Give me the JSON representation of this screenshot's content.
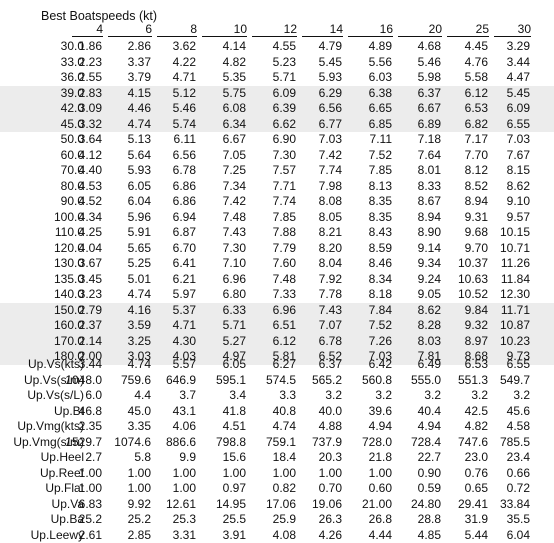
{
  "title": "Best Boatspeeds (kt)",
  "wind_speeds": [
    "4",
    "6",
    "8",
    "10",
    "12",
    "14",
    "16",
    "20",
    "25",
    "30"
  ],
  "angle_rows": [
    {
      "label": "30.0",
      "values": [
        "1.86",
        "2.86",
        "3.62",
        "4.14",
        "4.55",
        "4.79",
        "4.89",
        "4.68",
        "4.45",
        "3.29"
      ]
    },
    {
      "label": "33.0",
      "values": [
        "2.23",
        "3.37",
        "4.22",
        "4.82",
        "5.23",
        "5.45",
        "5.56",
        "5.46",
        "4.76",
        "3.44"
      ]
    },
    {
      "label": "36.0",
      "values": [
        "2.55",
        "3.79",
        "4.71",
        "5.35",
        "5.71",
        "5.93",
        "6.03",
        "5.98",
        "5.58",
        "4.47"
      ]
    },
    {
      "label": "39.0",
      "values": [
        "2.83",
        "4.15",
        "5.12",
        "5.75",
        "6.09",
        "6.29",
        "6.38",
        "6.37",
        "6.12",
        "5.45"
      ]
    },
    {
      "label": "42.0",
      "values": [
        "3.09",
        "4.46",
        "5.46",
        "6.08",
        "6.39",
        "6.56",
        "6.65",
        "6.67",
        "6.53",
        "6.09"
      ]
    },
    {
      "label": "45.0",
      "values": [
        "3.32",
        "4.74",
        "5.74",
        "6.34",
        "6.62",
        "6.77",
        "6.85",
        "6.89",
        "6.82",
        "6.55"
      ]
    },
    {
      "label": "50.0",
      "values": [
        "3.64",
        "5.13",
        "6.11",
        "6.67",
        "6.90",
        "7.03",
        "7.11",
        "7.18",
        "7.17",
        "7.03"
      ]
    },
    {
      "label": "60.0",
      "values": [
        "4.12",
        "5.64",
        "6.56",
        "7.05",
        "7.30",
        "7.42",
        "7.52",
        "7.64",
        "7.70",
        "7.67"
      ]
    },
    {
      "label": "70.0",
      "values": [
        "4.40",
        "5.93",
        "6.78",
        "7.25",
        "7.57",
        "7.74",
        "7.85",
        "8.01",
        "8.12",
        "8.15"
      ]
    },
    {
      "label": "80.0",
      "values": [
        "4.53",
        "6.05",
        "6.86",
        "7.34",
        "7.71",
        "7.98",
        "8.13",
        "8.33",
        "8.52",
        "8.62"
      ]
    },
    {
      "label": "90.0",
      "values": [
        "4.52",
        "6.04",
        "6.86",
        "7.42",
        "7.74",
        "8.08",
        "8.35",
        "8.67",
        "8.94",
        "9.10"
      ]
    },
    {
      "label": "100.0",
      "values": [
        "4.34",
        "5.96",
        "6.94",
        "7.48",
        "7.85",
        "8.05",
        "8.35",
        "8.94",
        "9.31",
        "9.57"
      ]
    },
    {
      "label": "110.0",
      "values": [
        "4.25",
        "5.91",
        "6.87",
        "7.43",
        "7.88",
        "8.21",
        "8.43",
        "8.90",
        "9.68",
        "10.15"
      ]
    },
    {
      "label": "120.0",
      "values": [
        "4.04",
        "5.65",
        "6.70",
        "7.30",
        "7.79",
        "8.20",
        "8.59",
        "9.14",
        "9.70",
        "10.71"
      ]
    },
    {
      "label": "130.0",
      "values": [
        "3.67",
        "5.25",
        "6.41",
        "7.10",
        "7.60",
        "8.04",
        "8.46",
        "9.34",
        "10.37",
        "11.26"
      ]
    },
    {
      "label": "135.0",
      "values": [
        "3.45",
        "5.01",
        "6.21",
        "6.96",
        "7.48",
        "7.92",
        "8.34",
        "9.24",
        "10.63",
        "11.84"
      ]
    },
    {
      "label": "140.0",
      "values": [
        "3.23",
        "4.74",
        "5.97",
        "6.80",
        "7.33",
        "7.78",
        "8.18",
        "9.05",
        "10.52",
        "12.30"
      ]
    },
    {
      "label": "150.0",
      "values": [
        "2.79",
        "4.16",
        "5.37",
        "6.33",
        "6.96",
        "7.43",
        "7.84",
        "8.62",
        "9.84",
        "11.71"
      ]
    },
    {
      "label": "160.0",
      "values": [
        "2.37",
        "3.59",
        "4.71",
        "5.71",
        "6.51",
        "7.07",
        "7.52",
        "8.28",
        "9.32",
        "10.87"
      ]
    },
    {
      "label": "170.0",
      "values": [
        "2.14",
        "3.25",
        "4.30",
        "5.27",
        "6.12",
        "6.78",
        "7.26",
        "8.03",
        "8.97",
        "10.23"
      ]
    },
    {
      "label": "180.0",
      "values": [
        "2.00",
        "3.03",
        "4.03",
        "4.97",
        "5.81",
        "6.52",
        "7.03",
        "7.81",
        "8.68",
        "9.73"
      ]
    }
  ],
  "shaded_rows": [
    3,
    4,
    5,
    17,
    18,
    19,
    20
  ],
  "summary_rows": [
    {
      "label": "Up.Vs(kts)",
      "values": [
        "3.44",
        "4.74",
        "5.57",
        "6.05",
        "6.27",
        "6.37",
        "6.42",
        "6.49",
        "6.53",
        "6.55"
      ]
    },
    {
      "label": "Up.Vs(s/m)",
      "values": [
        "1048.0",
        "759.6",
        "646.9",
        "595.1",
        "574.5",
        "565.2",
        "560.8",
        "555.0",
        "551.3",
        "549.7"
      ]
    },
    {
      "label": "Up.Vs(s/L)",
      "values": [
        "6.0",
        "4.4",
        "3.7",
        "3.4",
        "3.3",
        "3.2",
        "3.2",
        "3.2",
        "3.2",
        "3.2"
      ]
    },
    {
      "label": "Up.Bt",
      "values": [
        "46.8",
        "45.0",
        "43.1",
        "41.8",
        "40.8",
        "40.0",
        "39.6",
        "40.4",
        "42.5",
        "45.6"
      ]
    },
    {
      "label": "Up.Vmg(kts)",
      "values": [
        "2.35",
        "3.35",
        "4.06",
        "4.51",
        "4.74",
        "4.88",
        "4.94",
        "4.94",
        "4.82",
        "4.58"
      ]
    },
    {
      "label": "Up.Vmg(s/m)",
      "values": [
        "1529.7",
        "1074.6",
        "886.6",
        "798.8",
        "759.1",
        "737.9",
        "728.0",
        "728.4",
        "747.6",
        "785.5"
      ]
    },
    {
      "label": "Up.Heel",
      "values": [
        "2.7",
        "5.8",
        "9.9",
        "15.6",
        "18.4",
        "20.3",
        "21.8",
        "22.7",
        "23.0",
        "23.4"
      ]
    },
    {
      "label": "Up.Reef",
      "values": [
        "1.00",
        "1.00",
        "1.00",
        "1.00",
        "1.00",
        "1.00",
        "1.00",
        "0.90",
        "0.76",
        "0.66"
      ]
    },
    {
      "label": "Up.Flat",
      "values": [
        "1.00",
        "1.00",
        "1.00",
        "0.97",
        "0.82",
        "0.70",
        "0.60",
        "0.59",
        "0.65",
        "0.72"
      ]
    },
    {
      "label": "Up.Va",
      "values": [
        "6.83",
        "9.92",
        "12.61",
        "14.95",
        "17.06",
        "19.06",
        "21.00",
        "24.80",
        "29.41",
        "33.84"
      ]
    },
    {
      "label": "Up.Ba",
      "values": [
        "25.2",
        "25.2",
        "25.3",
        "25.5",
        "25.9",
        "26.3",
        "26.8",
        "28.8",
        "31.9",
        "35.5"
      ]
    },
    {
      "label": "Up.Leewy",
      "values": [
        "2.61",
        "2.85",
        "3.31",
        "3.91",
        "4.08",
        "4.26",
        "4.44",
        "4.85",
        "5.44",
        "6.04"
      ]
    }
  ]
}
